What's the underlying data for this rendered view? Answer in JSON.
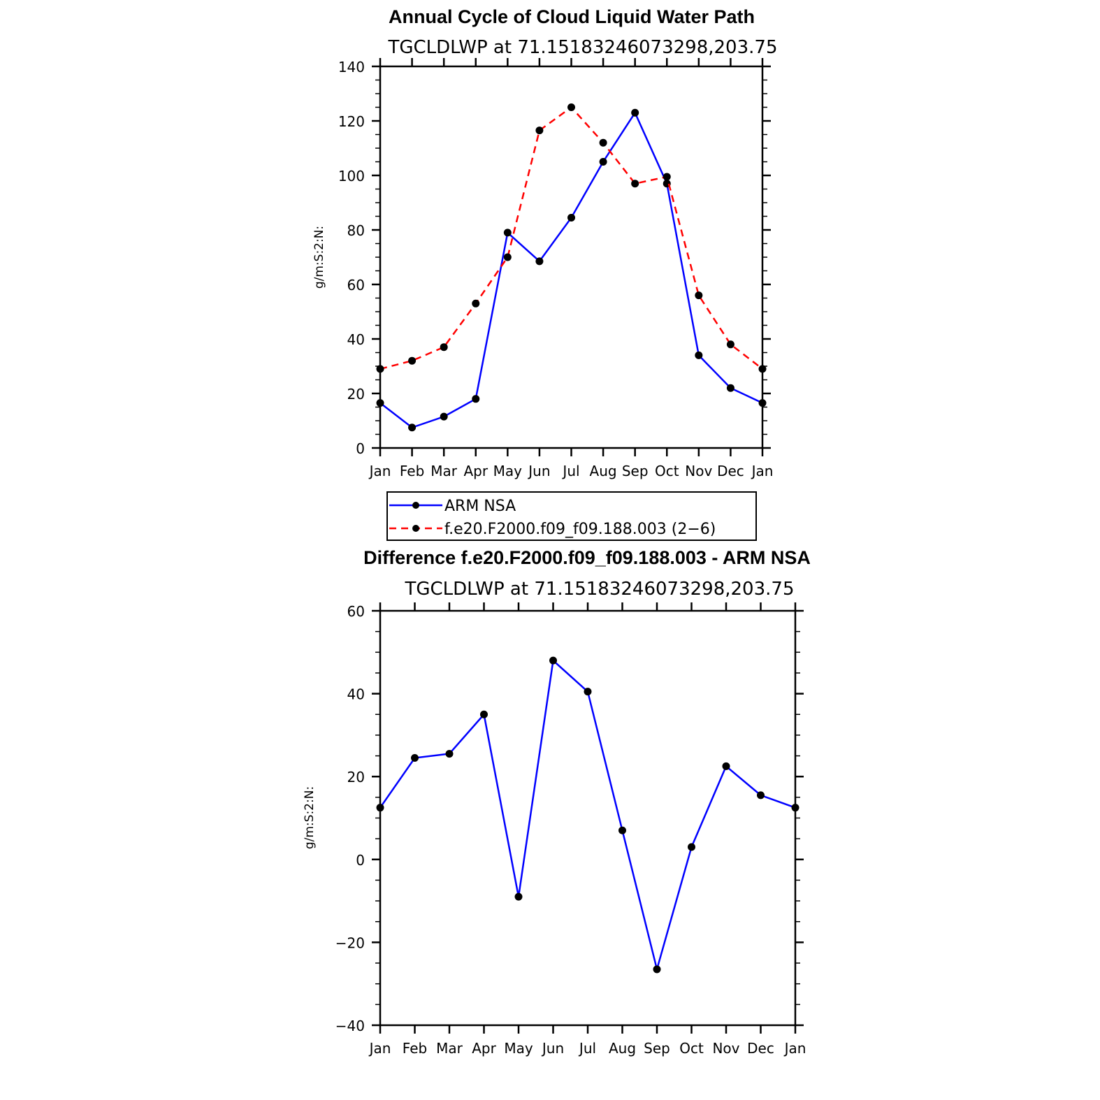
{
  "chart_data": [
    {
      "type": "line",
      "title": "Annual Cycle of Cloud Liquid Water Path",
      "subtitle": "TGCLDLWP  at  71.15183246073298,203.75",
      "ylabel": "g/m:S:2:N:",
      "ylim": [
        0,
        140
      ],
      "yticks": [
        "0",
        "20",
        "40",
        "60",
        "80",
        "100",
        "120",
        "140"
      ],
      "categories": [
        "Jan",
        "Feb",
        "Mar",
        "Apr",
        "May",
        "Jun",
        "Jul",
        "Aug",
        "Sep",
        "Oct",
        "Nov",
        "Dec",
        "Jan"
      ],
      "series": [
        {
          "name": "ARM NSA",
          "color": "#0000ff",
          "dash": "solid",
          "values": [
            16.5,
            7.5,
            11.5,
            18,
            79,
            68.5,
            84.5,
            105,
            123,
            97,
            34,
            22,
            16.5
          ]
        },
        {
          "name": "f.e20.F2000.f09_f09.188.003 (2−6)",
          "color": "#ff0000",
          "dash": "dashed",
          "values": [
            29,
            32,
            37,
            53,
            70,
            116.5,
            125,
            112,
            97,
            99.5,
            56,
            38,
            29
          ]
        }
      ],
      "legend": "below"
    },
    {
      "type": "line",
      "title": "Difference f.e20.F2000.f09_f09.188.003 - ARM NSA",
      "subtitle": "TGCLDLWP  at  71.15183246073298,203.75",
      "ylabel": "g/m:S:2:N:",
      "ylim": [
        -40,
        60
      ],
      "yticks": [
        "−40",
        "−20",
        "0",
        "20",
        "40",
        "60"
      ],
      "categories": [
        "Jan",
        "Feb",
        "Mar",
        "Apr",
        "May",
        "Jun",
        "Jul",
        "Aug",
        "Sep",
        "Oct",
        "Nov",
        "Dec",
        "Jan"
      ],
      "series": [
        {
          "color": "#0000ff",
          "dash": "solid",
          "values": [
            12.5,
            24.5,
            25.5,
            35,
            -9,
            48,
            40.5,
            7,
            -26.5,
            3,
            22.5,
            15.5,
            12.5
          ]
        }
      ]
    }
  ]
}
